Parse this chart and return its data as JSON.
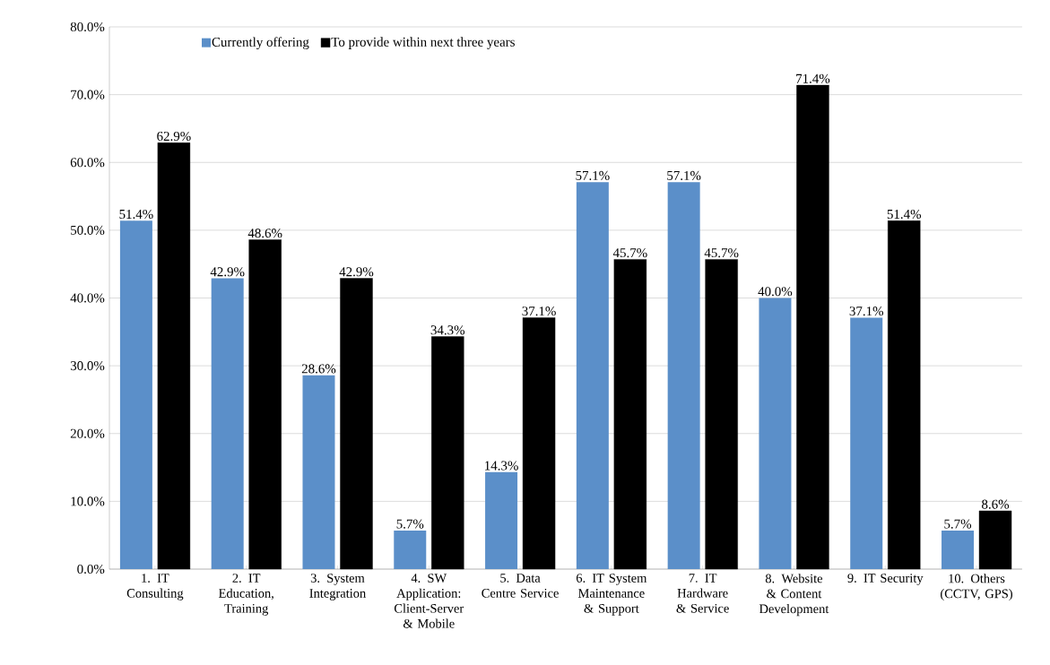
{
  "chart_data": {
    "type": "bar",
    "categories": [
      "1. IT Consulting",
      "2. IT Education, Training",
      "3. System Integration",
      "4. SW Application: Client-Server & Mobile",
      "5. Data Centre Service",
      "6. IT System Maintenance & Support",
      "7. IT Hardware & Service",
      "8. Website & Content Development",
      "9. IT Security",
      "10. Others (CCTV, GPS)"
    ],
    "series": [
      {
        "name": "Currently offering",
        "color": "#5b8fc9",
        "values": [
          51.4,
          42.9,
          28.6,
          5.7,
          14.3,
          57.1,
          57.1,
          40.0,
          37.1,
          5.7
        ],
        "value_labels": [
          "51.4%",
          "42.9%",
          "28.6%",
          "5.7%",
          "14.3%",
          "57.1%",
          "57.1%",
          "40.0%",
          "37.1%",
          "5.7%"
        ]
      },
      {
        "name": "To provide within next three years",
        "color": "#000000",
        "values": [
          62.9,
          48.6,
          42.9,
          34.3,
          37.1,
          45.7,
          45.7,
          71.4,
          51.4,
          8.6
        ],
        "value_labels": [
          "62.9%",
          "48.6%",
          "42.9%",
          "34.3%",
          "37.1%",
          "45.7%",
          "45.7%",
          "71.4%",
          "51.4%",
          "8.6%"
        ]
      }
    ],
    "ylim": [
      0,
      80
    ],
    "yticks": [
      {
        "value": 0,
        "label": "0.0%"
      },
      {
        "value": 10,
        "label": "10.0%"
      },
      {
        "value": 20,
        "label": "20.0%"
      },
      {
        "value": 30,
        "label": "30.0%"
      },
      {
        "value": 40,
        "label": "40.0%"
      },
      {
        "value": 50,
        "label": "50.0%"
      },
      {
        "value": 60,
        "label": "60.0%"
      },
      {
        "value": 70,
        "label": "70.0%"
      },
      {
        "value": 80,
        "label": "80.0%"
      }
    ],
    "grid": "y",
    "legend": "top"
  }
}
